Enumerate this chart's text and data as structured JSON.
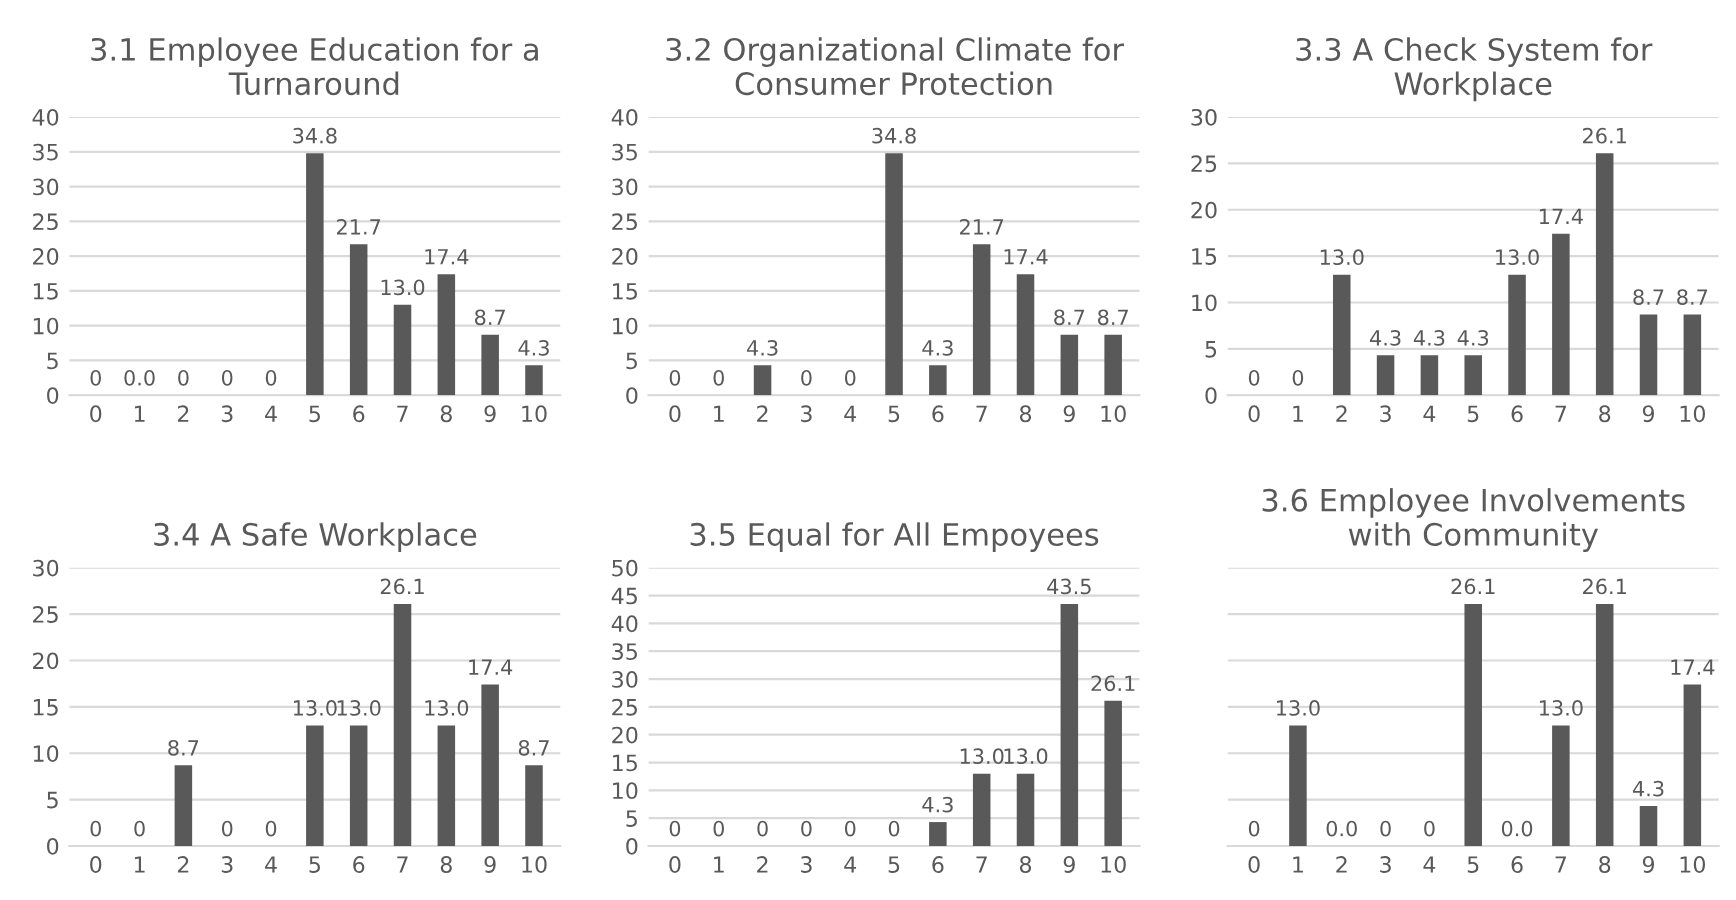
{
  "chart_data": [
    {
      "type": "bar",
      "title": "3.1 Employee Education for a\nTurnaround",
      "categories": [
        "0",
        "1",
        "2",
        "3",
        "4",
        "5",
        "6",
        "7",
        "8",
        "9",
        "10"
      ],
      "values": [
        0,
        0,
        0,
        0,
        0,
        34.8,
        21.7,
        13.0,
        17.4,
        8.7,
        4.3
      ],
      "value_labels": [
        "0",
        "0.0",
        "0",
        "0",
        "0",
        "34.8",
        "21.7",
        "13.0",
        "17.4",
        "8.7",
        "4.3"
      ],
      "color": "#595959",
      "ylim": [
        0,
        40
      ],
      "yticks": [
        0,
        5,
        10,
        15,
        20,
        25,
        30,
        35,
        40
      ],
      "grid": "y"
    },
    {
      "type": "bar",
      "title": "3.2 Organizational Climate for\nConsumer Protection",
      "categories": [
        "0",
        "1",
        "2",
        "3",
        "4",
        "5",
        "6",
        "7",
        "8",
        "9",
        "10"
      ],
      "values": [
        0,
        0,
        4.3,
        0,
        0,
        34.8,
        4.3,
        21.7,
        17.4,
        8.7,
        8.7
      ],
      "value_labels": [
        "0",
        "0",
        "4.3",
        "0",
        "0",
        "34.8",
        "4.3",
        "21.7",
        "17.4",
        "8.7",
        "8.7"
      ],
      "color": "#595959",
      "ylim": [
        0,
        40
      ],
      "yticks": [
        0,
        5,
        10,
        15,
        20,
        25,
        30,
        35,
        40
      ],
      "grid": "y"
    },
    {
      "type": "bar",
      "title": "3.3 A Check System for\nWorkplace",
      "categories": [
        "0",
        "1",
        "2",
        "3",
        "4",
        "5",
        "6",
        "7",
        "8",
        "9",
        "10"
      ],
      "values": [
        0,
        0,
        13.0,
        4.3,
        4.3,
        4.3,
        13.0,
        17.4,
        26.1,
        8.7,
        8.7
      ],
      "value_labels": [
        "0",
        "0",
        "13.0",
        "4.3",
        "4.3",
        "4.3",
        "13.0",
        "17.4",
        "26.1",
        "8.7",
        "8.7"
      ],
      "color": "#595959",
      "ylim": [
        0,
        30
      ],
      "yticks": [
        0,
        5,
        10,
        15,
        20,
        25,
        30
      ],
      "grid": "y"
    },
    {
      "type": "bar",
      "title": "3.4 A Safe Workplace",
      "categories": [
        "0",
        "1",
        "2",
        "3",
        "4",
        "5",
        "6",
        "7",
        "8",
        "9",
        "10"
      ],
      "values": [
        0,
        0,
        8.7,
        0,
        0,
        13.0,
        13.0,
        26.1,
        13.0,
        17.4,
        8.7
      ],
      "value_labels": [
        "0",
        "0",
        "8.7",
        "0",
        "0",
        "13.0",
        "13.0",
        "26.1",
        "13.0",
        "17.4",
        "8.7"
      ],
      "color": "#595959",
      "ylim": [
        0,
        30
      ],
      "yticks": [
        0,
        5,
        10,
        15,
        20,
        25,
        30
      ],
      "grid": "y"
    },
    {
      "type": "bar",
      "title": "3.5 Equal for All Empoyees",
      "categories": [
        "0",
        "1",
        "2",
        "3",
        "4",
        "5",
        "6",
        "7",
        "8",
        "9",
        "10"
      ],
      "values": [
        0,
        0,
        0,
        0,
        0,
        0,
        4.3,
        13.0,
        13.0,
        43.5,
        26.1
      ],
      "value_labels": [
        "0",
        "0",
        "0",
        "0",
        "0",
        "0",
        "4.3",
        "13.0",
        "13.0",
        "43.5",
        "26.1"
      ],
      "color": "#595959",
      "ylim": [
        0,
        50
      ],
      "yticks": [
        0,
        5,
        10,
        15,
        20,
        25,
        30,
        35,
        40,
        45,
        50
      ],
      "grid": "y"
    },
    {
      "type": "bar",
      "title": "3.6 Employee Involvements\nwith Community",
      "categories": [
        "0",
        "1",
        "2",
        "3",
        "4",
        "5",
        "6",
        "7",
        "8",
        "9",
        "10"
      ],
      "values": [
        0,
        13.0,
        0,
        0,
        0,
        26.1,
        0,
        13.0,
        26.1,
        4.3,
        17.4
      ],
      "value_labels": [
        "0",
        "13.0",
        "0.0",
        "0",
        "0",
        "26.1",
        "0.0",
        "13.0",
        "26.1",
        "4.3",
        "17.4"
      ],
      "color": "#595959",
      "ylim": [
        0,
        30
      ],
      "yticks": [
        {
          "value": 0,
          "label": null
        },
        {
          "value": 5,
          "label": null
        },
        {
          "value": 10,
          "label": null
        },
        {
          "value": 15,
          "label": null
        },
        {
          "value": 20,
          "label": null
        },
        {
          "value": 25,
          "label": null
        },
        {
          "value": 30,
          "label": null
        }
      ],
      "tick_labels": "x",
      "grid": "y"
    }
  ]
}
